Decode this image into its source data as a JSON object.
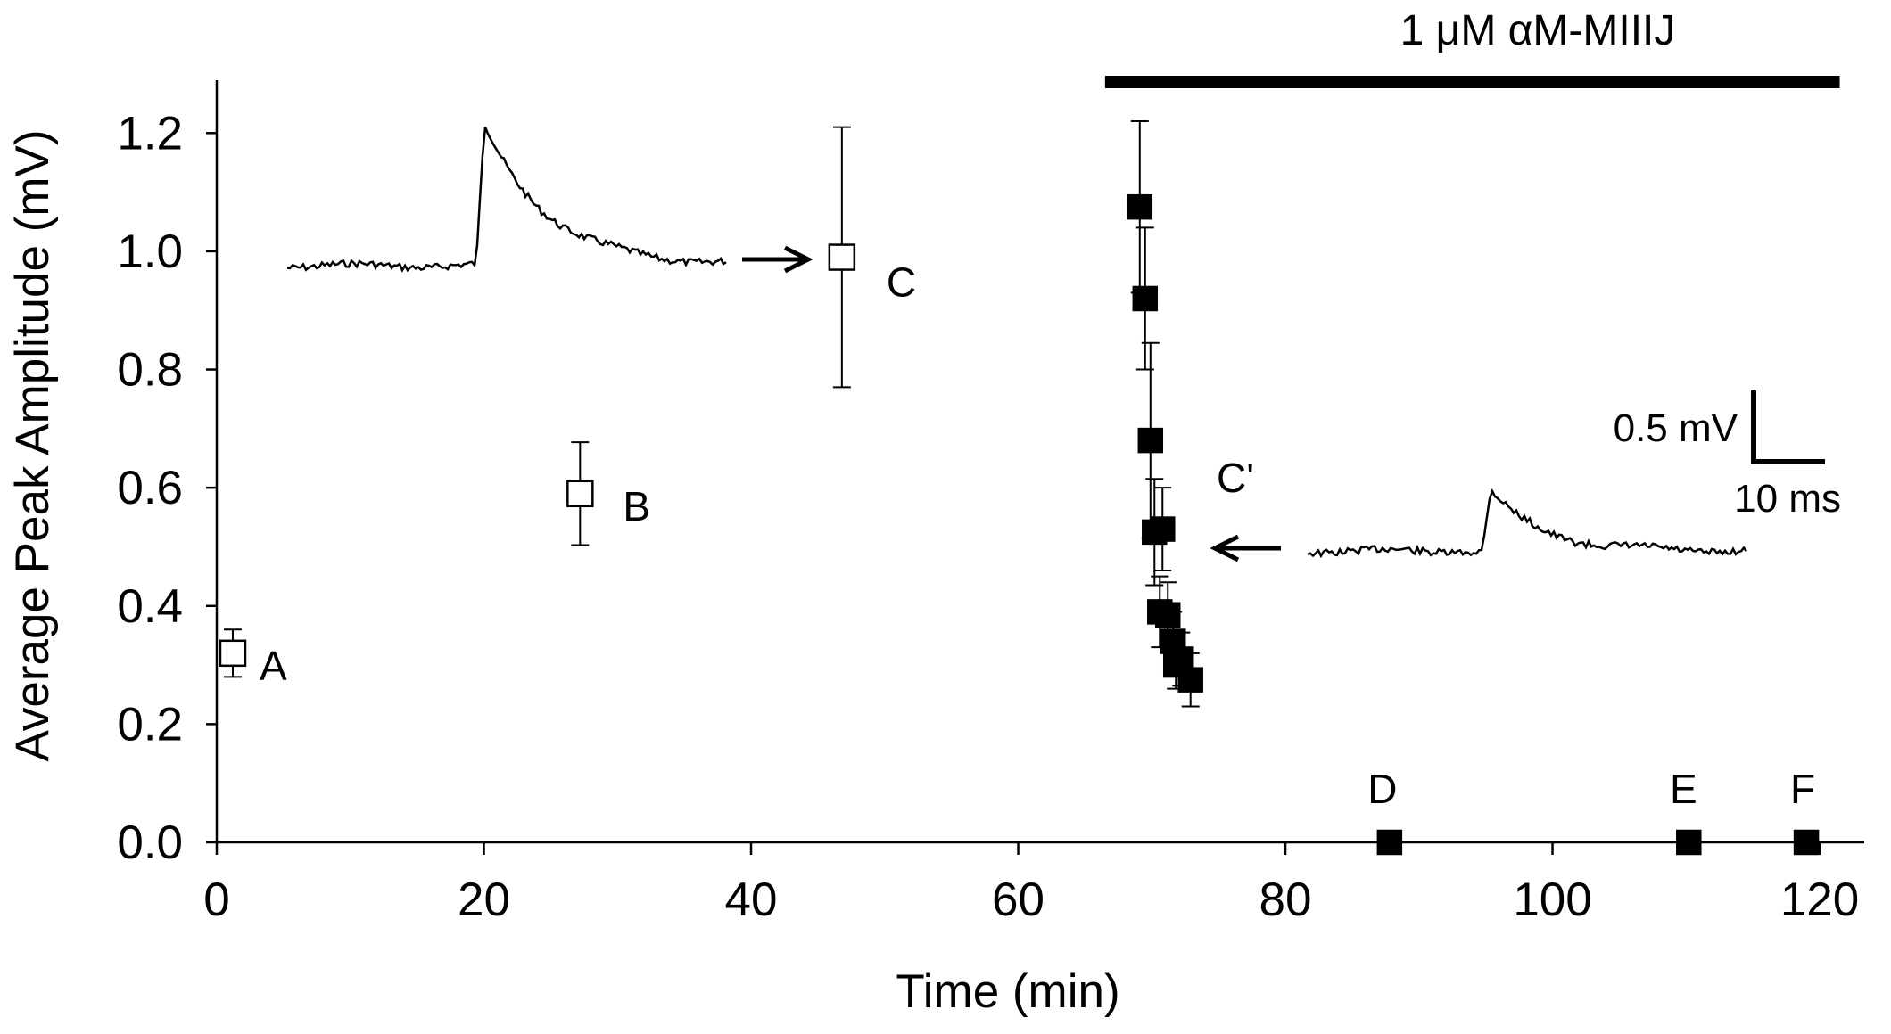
{
  "chart_data": {
    "type": "scatter",
    "xlabel": "Time (min)",
    "ylabel": "Average Peak Amplitude (mV)",
    "xlim": [
      0,
      122
    ],
    "ylim": [
      0,
      1.3
    ],
    "xticks": [
      0,
      20,
      40,
      60,
      80,
      100,
      120
    ],
    "yticks": [
      0.0,
      0.2,
      0.4,
      0.6,
      0.8,
      1.0,
      1.2
    ],
    "xtick_labels": [
      "0",
      "20",
      "40",
      "60",
      "80",
      "100",
      "120"
    ],
    "ytick_labels": [
      "0.0",
      "0.2",
      "0.4",
      "0.6",
      "0.8",
      "1.0",
      "1.2"
    ],
    "grid": false,
    "legend": "none",
    "series": [
      {
        "marker": "open-square",
        "points": [
          {
            "x": 1.2,
            "y": 0.32,
            "err": 0.04,
            "label": "A"
          },
          {
            "x": 27.2,
            "y": 0.59,
            "err": 0.087,
            "label": "B"
          },
          {
            "x": 46.8,
            "y": 0.99,
            "err": 0.22,
            "label": "C"
          }
        ]
      },
      {
        "marker": "filled-square",
        "points": [
          {
            "x": 69.1,
            "y": 1.075,
            "err": 0.145
          },
          {
            "x": 69.5,
            "y": 0.92,
            "err": 0.12
          },
          {
            "x": 69.9,
            "y": 0.68,
            "err": 0.165
          },
          {
            "x": 70.2,
            "y": 0.525,
            "err": 0.09
          },
          {
            "x": 70.8,
            "y": 0.53,
            "err": 0.07
          },
          {
            "x": 70.6,
            "y": 0.39,
            "err": 0.06
          },
          {
            "x": 71.2,
            "y": 0.385,
            "err": 0.055
          },
          {
            "x": 71.6,
            "y": 0.34,
            "err": 0.05
          },
          {
            "x": 72.2,
            "y": 0.31,
            "err": 0.045
          },
          {
            "x": 71.8,
            "y": 0.3,
            "err": 0.04
          },
          {
            "x": 72.9,
            "y": 0.275,
            "err": 0.045
          },
          {
            "x": 87.8,
            "y": 0.0,
            "err": 0,
            "label": "D"
          },
          {
            "x": 110.2,
            "y": 0.0,
            "err": 0,
            "label": "E"
          },
          {
            "x": 119.0,
            "y": 0.0,
            "err": 0,
            "label": "F"
          }
        ]
      }
    ],
    "annotations": {
      "c_prime_label": "C'",
      "drug_label": "1 μM αM-MIIIJ",
      "drug_bar_x": [
        66.5,
        121.5
      ],
      "scale_bar_v": "0.5 mV",
      "scale_bar_t": "10 ms"
    }
  }
}
